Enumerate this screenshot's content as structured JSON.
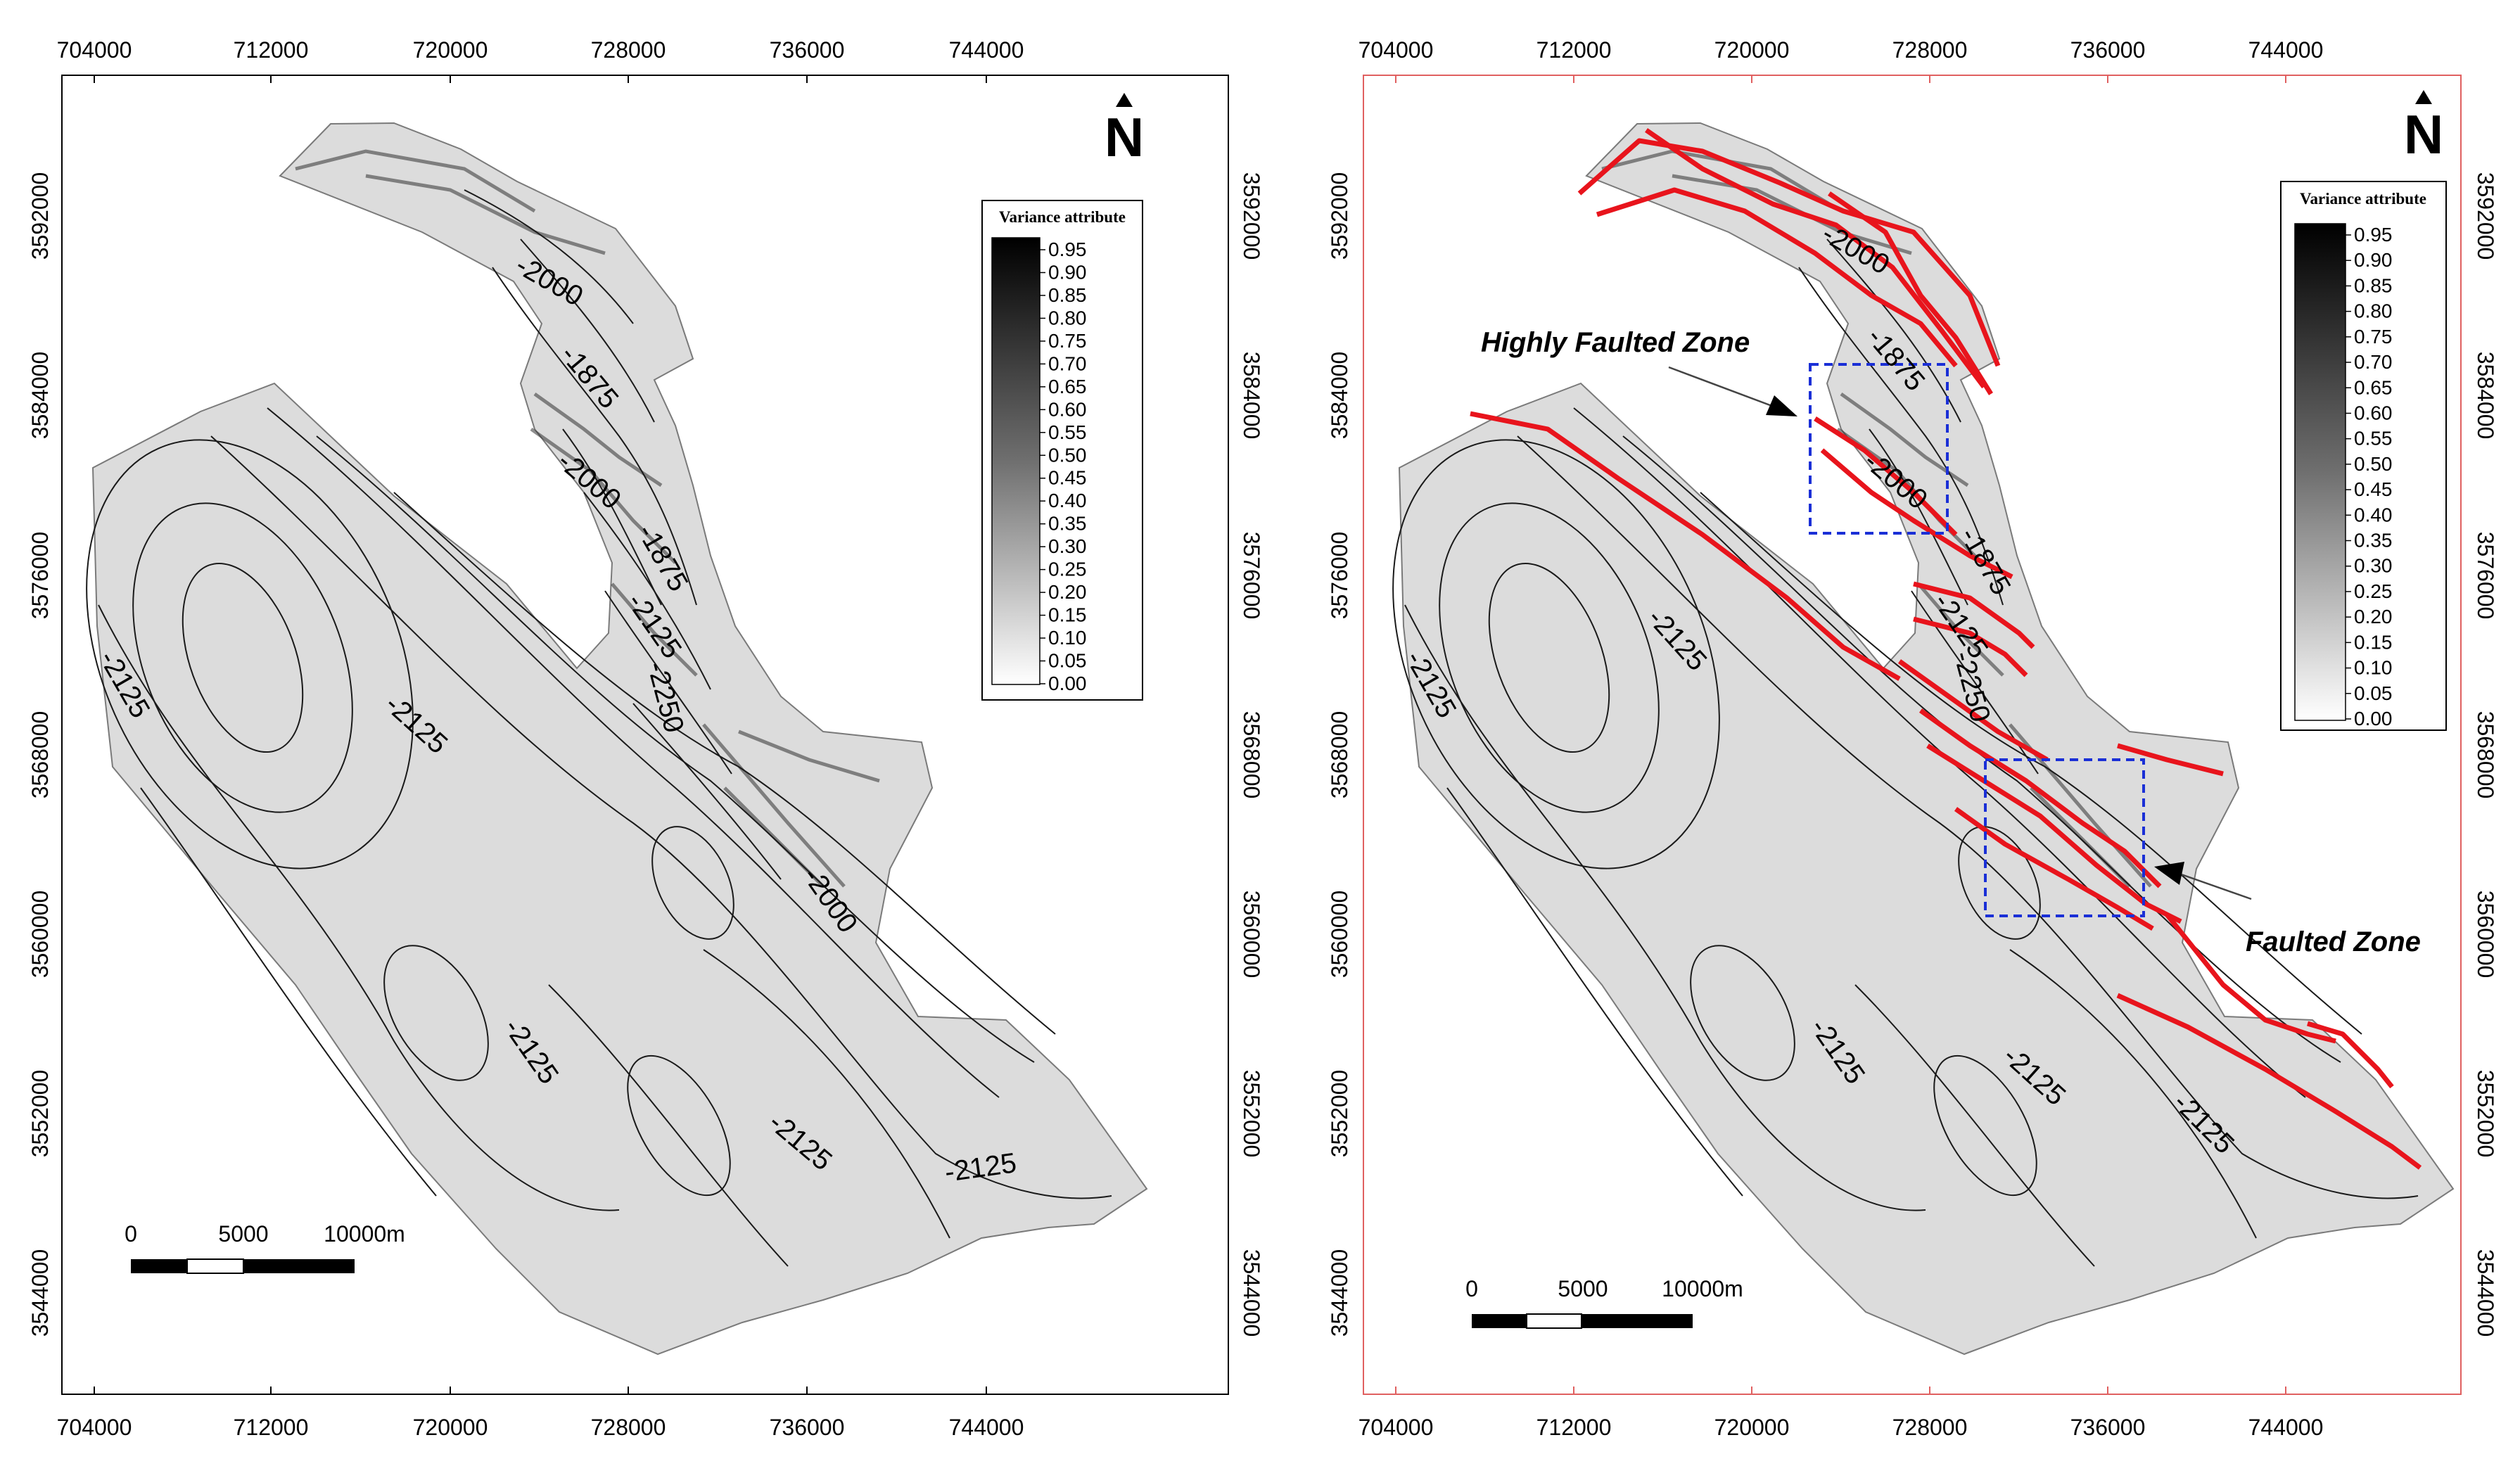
{
  "panels": [
    {
      "id": "left",
      "x_ticks": [
        "704000",
        "712000",
        "720000",
        "728000",
        "736000",
        "744000"
      ],
      "y_ticks": [
        "3592000",
        "3584000",
        "3576000",
        "3568000",
        "3560000",
        "3552000",
        "3544000"
      ],
      "contour_labels": [
        "-2000",
        "-1875",
        "-2000",
        "-1875",
        "-2125",
        "-2250",
        "-2125",
        "-2125",
        "-2000",
        "-2125",
        "-2125",
        "-2125"
      ],
      "north_label": "N",
      "legend": {
        "title": "Variance attribute",
        "ticks": [
          "0.95",
          "0.90",
          "0.85",
          "0.80",
          "0.75",
          "0.70",
          "0.65",
          "0.60",
          "0.55",
          "0.50",
          "0.45",
          "0.40",
          "0.35",
          "0.30",
          "0.25",
          "0.20",
          "0.15",
          "0.10",
          "0.05",
          "0.00"
        ]
      },
      "scale_bar": {
        "labels": [
          "0",
          "5000",
          "10000m"
        ]
      },
      "border_color": "#000000"
    },
    {
      "id": "right",
      "x_ticks": [
        "704000",
        "712000",
        "720000",
        "728000",
        "736000",
        "744000"
      ],
      "y_ticks": [
        "3592000",
        "3584000",
        "3576000",
        "3568000",
        "3560000",
        "3552000",
        "3544000"
      ],
      "contour_labels": [
        "-2000",
        "-1875",
        "-2000",
        "-1875",
        "-2125",
        "-2250",
        "-2125",
        "-2125",
        "-2125",
        "-2125",
        "-2125"
      ],
      "north_label": "N",
      "legend": {
        "title": "Variance attribute",
        "ticks": [
          "0.95",
          "0.90",
          "0.85",
          "0.80",
          "0.75",
          "0.70",
          "0.65",
          "0.60",
          "0.55",
          "0.50",
          "0.45",
          "0.40",
          "0.35",
          "0.30",
          "0.25",
          "0.20",
          "0.15",
          "0.10",
          "0.05",
          "0.00"
        ]
      },
      "scale_bar": {
        "labels": [
          "0",
          "5000",
          "10000m"
        ]
      },
      "annotations": {
        "highly_faulted": "Highly Faulted Zone",
        "faulted": "Faulted Zone"
      },
      "border_color": "#e06060",
      "fault_color": "#e8141c",
      "zone_box_color": "#1a2fd6"
    }
  ]
}
